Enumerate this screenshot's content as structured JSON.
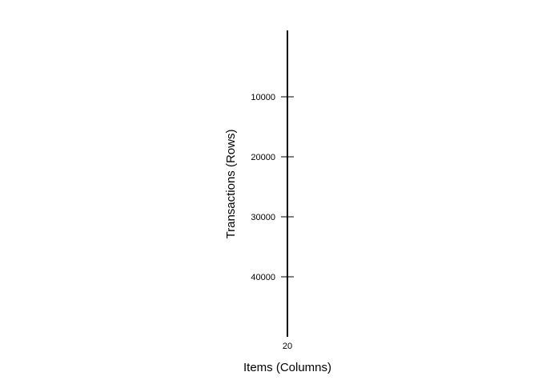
{
  "chart_data": {
    "type": "heatmap",
    "title": "",
    "xlabel": "Items (Columns)",
    "ylabel": "Transactions (Rows)",
    "x_ticks": [
      20
    ],
    "y_ticks": [
      10000,
      20000,
      30000,
      40000
    ],
    "ylim": [
      0,
      50000
    ],
    "y_inverted": true,
    "grid": false,
    "cells": [],
    "colors": {
      "axis": "#000000",
      "background": "#ffffff"
    }
  }
}
